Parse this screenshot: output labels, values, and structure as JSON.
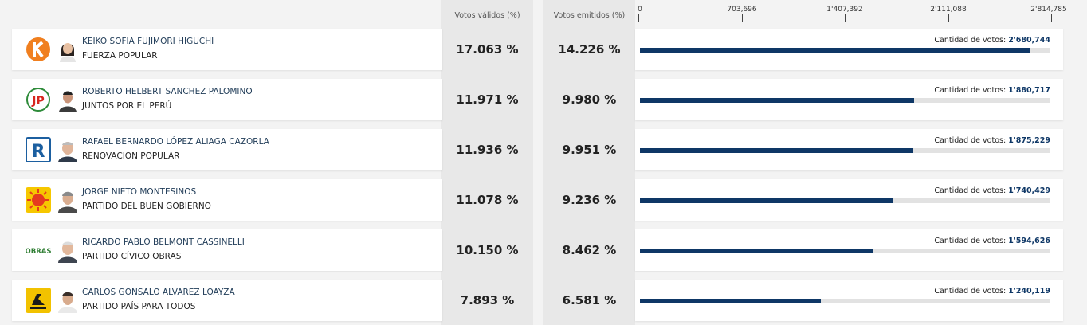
{
  "headers": {
    "valid": "Votos válidos (%)",
    "emitted": "Votos emitidos (%)",
    "votes_label": "Cantidad de votos:"
  },
  "chart_data": {
    "type": "bar",
    "axis_ticks": [
      "0",
      "703,696",
      "1'407,392",
      "2'111,088",
      "2'814,785"
    ],
    "xlim": [
      0,
      2814785
    ],
    "categories": [
      "KEIKO SOFIA FUJIMORI HIGUCHI",
      "ROBERTO HELBERT SANCHEZ PALOMINO",
      "RAFAEL BERNARDO LÓPEZ ALIAGA CAZORLA",
      "JORGE NIETO MONTESINOS",
      "RICARDO PABLO BELMONT CASSINELLI",
      "CARLOS GONSALO ALVAREZ LOAYZA"
    ],
    "values": [
      2680744,
      1880717,
      1875229,
      1740429,
      1594626,
      1240119
    ]
  },
  "rows": [
    {
      "name": "KEIKO SOFIA FUJIMORI HIGUCHI",
      "party": "FUERZA POPULAR",
      "valid": "17.063 %",
      "emitted": "14.226 %",
      "votes_text": "2'680,744",
      "votes": 2680744,
      "logo_icon": "fuerza-popular-logo",
      "logo_color": "#f07f1f"
    },
    {
      "name": "ROBERTO HELBERT SANCHEZ PALOMINO",
      "party": "JUNTOS POR EL PERÚ",
      "valid": "11.971 %",
      "emitted": "9.980 %",
      "votes_text": "1'880,717",
      "votes": 1880717,
      "logo_icon": "juntos-por-el-peru-logo",
      "logo_color": "#d7261e"
    },
    {
      "name": "RAFAEL BERNARDO LÓPEZ ALIAGA CAZORLA",
      "party": "RENOVACIÓN POPULAR",
      "valid": "11.936 %",
      "emitted": "9.951 %",
      "votes_text": "1'875,229",
      "votes": 1875229,
      "logo_icon": "renovacion-popular-logo",
      "logo_color": "#1c5fa0"
    },
    {
      "name": "JORGE NIETO MONTESINOS",
      "party": "PARTIDO DEL BUEN GOBIERNO",
      "valid": "11.078 %",
      "emitted": "9.236 %",
      "votes_text": "1'740,429",
      "votes": 1740429,
      "logo_icon": "buen-gobierno-sun-logo",
      "logo_color": "#e53a1f"
    },
    {
      "name": "RICARDO PABLO BELMONT CASSINELLI",
      "party": "PARTIDO CÍVICO OBRAS",
      "valid": "10.150 %",
      "emitted": "8.462 %",
      "votes_text": "1'594,626",
      "votes": 1594626,
      "logo_icon": "obras-logo",
      "logo_color": "#2e7d32"
    },
    {
      "name": "CARLOS GONSALO ALVAREZ LOAYZA",
      "party": "PARTIDO PAÍS PARA TODOS",
      "valid": "7.893 %",
      "emitted": "6.581 %",
      "votes_text": "1'240,119",
      "votes": 1240119,
      "logo_icon": "pais-para-todos-logo",
      "logo_color": "#f2c200"
    }
  ]
}
